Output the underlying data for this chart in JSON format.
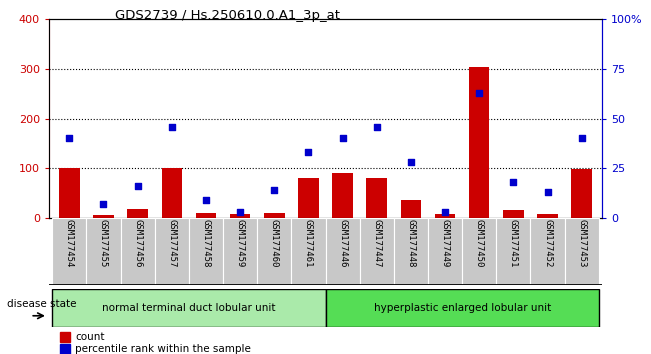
{
  "title": "GDS2739 / Hs.250610.0.A1_3p_at",
  "samples": [
    "GSM177454",
    "GSM177455",
    "GSM177456",
    "GSM177457",
    "GSM177458",
    "GSM177459",
    "GSM177460",
    "GSM177461",
    "GSM177446",
    "GSM177447",
    "GSM177448",
    "GSM177449",
    "GSM177450",
    "GSM177451",
    "GSM177452",
    "GSM177453"
  ],
  "counts": [
    100,
    5,
    18,
    100,
    10,
    8,
    10,
    80,
    90,
    80,
    35,
    8,
    305,
    15,
    8,
    98
  ],
  "percentiles": [
    40,
    7,
    16,
    46,
    9,
    3,
    14,
    33,
    40,
    46,
    28,
    3,
    63,
    18,
    13,
    40
  ],
  "group1_label": "normal terminal duct lobular unit",
  "group1_count": 8,
  "group2_label": "hyperplastic enlarged lobular unit",
  "group2_count": 8,
  "disease_state_label": "disease state",
  "bar_color": "#cc0000",
  "dot_color": "#0000cc",
  "tick_bg": "#c8c8c8",
  "group1_bg": "#aaeaaa",
  "group2_bg": "#55dd55",
  "left_ylim": [
    0,
    400
  ],
  "right_ylim": [
    0,
    100
  ],
  "left_yticks": [
    0,
    100,
    200,
    300,
    400
  ],
  "right_yticks": [
    0,
    25,
    50,
    75,
    100
  ],
  "right_yticklabels": [
    "0",
    "25",
    "50",
    "75",
    "100%"
  ]
}
